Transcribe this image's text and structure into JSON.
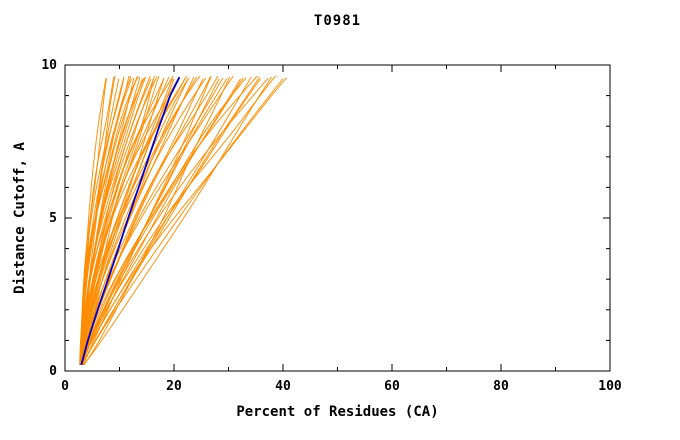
{
  "title": "T0981",
  "chart_data": {
    "type": "line",
    "title": "T0981",
    "xlabel": "Percent of Residues (CA)",
    "ylabel": "Distance Cutoff, A",
    "xlim": [
      0,
      100
    ],
    "ylim": [
      0,
      10
    ],
    "x_ticks": [
      0,
      20,
      40,
      60,
      80,
      100
    ],
    "y_ticks": [
      0,
      5,
      10
    ],
    "x_minor_step": 10,
    "y_minor_step": 1,
    "grid": false,
    "axis_color": "#000000",
    "orange_curves": {
      "name": "model-curves",
      "color": "#FF8C00",
      "count": 60,
      "y_range": [
        0.2,
        9.6
      ],
      "shape": "x(y) = x0 + (x1 - x0) * t^p, t = (y - ymin)/(ymax - ymin)",
      "params": [
        [
          3.0,
          7.5,
          1.8
        ],
        [
          2.8,
          8.0,
          1.6
        ],
        [
          3.2,
          9.0,
          2.0
        ],
        [
          3.4,
          9.5,
          1.5
        ],
        [
          2.9,
          10.0,
          1.9
        ],
        [
          3.1,
          10.5,
          1.7
        ],
        [
          3.3,
          11.0,
          2.1
        ],
        [
          2.7,
          11.5,
          1.6
        ],
        [
          3.0,
          12.0,
          1.9
        ],
        [
          3.2,
          12.5,
          1.5
        ],
        [
          3.5,
          13.0,
          1.8
        ],
        [
          2.8,
          13.5,
          2.0
        ],
        [
          3.1,
          14.0,
          1.6
        ],
        [
          3.4,
          14.5,
          1.9
        ],
        [
          2.9,
          15.0,
          1.7
        ],
        [
          3.2,
          15.5,
          1.5
        ],
        [
          3.0,
          16.0,
          1.8
        ],
        [
          3.3,
          16.5,
          1.3
        ],
        [
          2.8,
          17.0,
          1.7
        ],
        [
          3.1,
          17.5,
          1.4
        ],
        [
          3.4,
          18.0,
          1.8
        ],
        [
          2.9,
          18.5,
          1.2
        ],
        [
          3.2,
          19.0,
          1.6
        ],
        [
          3.0,
          19.5,
          1.9
        ],
        [
          3.5,
          20.0,
          1.3
        ],
        [
          2.8,
          20.5,
          1.7
        ],
        [
          3.1,
          21.0,
          1.4
        ],
        [
          3.3,
          22.0,
          1.8
        ],
        [
          2.9,
          22.5,
          1.2
        ],
        [
          3.2,
          23.0,
          1.6
        ],
        [
          3.0,
          24.0,
          1.4
        ],
        [
          3.4,
          25.0,
          1.7
        ],
        [
          2.9,
          25.5,
          1.2
        ],
        [
          3.1,
          26.0,
          1.5
        ],
        [
          3.3,
          27.0,
          1.0
        ],
        [
          3.0,
          28.0,
          1.4
        ],
        [
          3.2,
          28.5,
          1.1
        ],
        [
          2.8,
          29.0,
          1.3
        ],
        [
          3.4,
          30.0,
          0.9
        ],
        [
          3.1,
          31.0,
          1.4
        ],
        [
          2.9,
          32.0,
          1.1
        ],
        [
          3.2,
          33.0,
          1.3
        ],
        [
          3.0,
          34.0,
          1.0
        ],
        [
          3.3,
          35.0,
          1.4
        ],
        [
          2.8,
          36.0,
          1.1
        ],
        [
          3.1,
          37.0,
          1.3
        ],
        [
          3.4,
          38.0,
          0.95
        ],
        [
          2.9,
          39.0,
          1.25
        ],
        [
          3.2,
          40.0,
          1.1
        ],
        [
          3.0,
          41.0,
          1.2
        ],
        [
          3.1,
          13.8,
          1.7
        ],
        [
          2.9,
          16.8,
          1.5
        ],
        [
          3.2,
          19.8,
          1.4
        ],
        [
          3.0,
          21.8,
          1.6
        ],
        [
          3.3,
          23.8,
          1.3
        ],
        [
          2.8,
          26.5,
          1.2
        ],
        [
          3.1,
          29.5,
          1.15
        ],
        [
          3.0,
          32.5,
          1.2
        ],
        [
          3.2,
          35.5,
          1.05
        ],
        [
          2.9,
          12.2,
          1.8
        ]
      ]
    },
    "blue_curve": {
      "name": "highlight-curve",
      "color": "#0000CD",
      "points": [
        [
          3.0,
          0.2
        ],
        [
          4.2,
          1.0
        ],
        [
          6.0,
          2.0
        ],
        [
          7.9,
          3.0
        ],
        [
          9.8,
          4.0
        ],
        [
          11.6,
          5.0
        ],
        [
          13.5,
          6.0
        ],
        [
          15.4,
          7.0
        ],
        [
          17.3,
          8.0
        ],
        [
          19.3,
          9.0
        ],
        [
          21.0,
          9.6
        ]
      ]
    }
  }
}
